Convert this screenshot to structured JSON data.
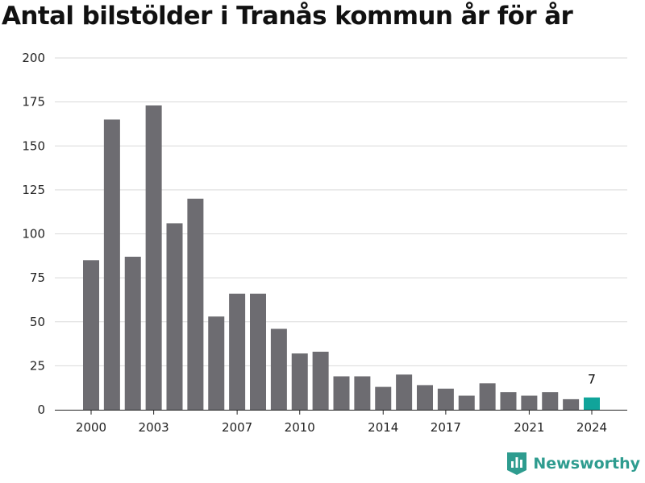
{
  "chart_data": {
    "type": "bar",
    "title": "Antal bilstölder i Tranås kommun år för år",
    "xlabel": "",
    "ylabel": "",
    "categories": [
      "2000",
      "2001",
      "2002",
      "2003",
      "2004",
      "2005",
      "2006",
      "2007",
      "2008",
      "2009",
      "2010",
      "2011",
      "2012",
      "2013",
      "2014",
      "2015",
      "2016",
      "2017",
      "2018",
      "2019",
      "2020",
      "2021",
      "2022",
      "2023",
      "2024"
    ],
    "values": [
      85,
      165,
      87,
      173,
      106,
      120,
      53,
      66,
      66,
      46,
      32,
      33,
      19,
      19,
      13,
      20,
      14,
      12,
      8,
      15,
      10,
      8,
      10,
      6,
      7
    ],
    "x_tick_labels": [
      "2000",
      "2003",
      "2007",
      "2010",
      "2014",
      "2017",
      "2021",
      "2024"
    ],
    "y_ticks": [
      0,
      25,
      50,
      75,
      100,
      125,
      150,
      175,
      200
    ],
    "ylim": [
      0,
      200
    ],
    "grid": true,
    "highlight": {
      "category": "2024",
      "label": "7"
    },
    "colors": {
      "bar": "#6d6c71",
      "highlight": "#10a49a",
      "grid": "#d9d9d9"
    }
  },
  "brand": {
    "name": "Newsworthy",
    "color": "#2e9c8f"
  }
}
